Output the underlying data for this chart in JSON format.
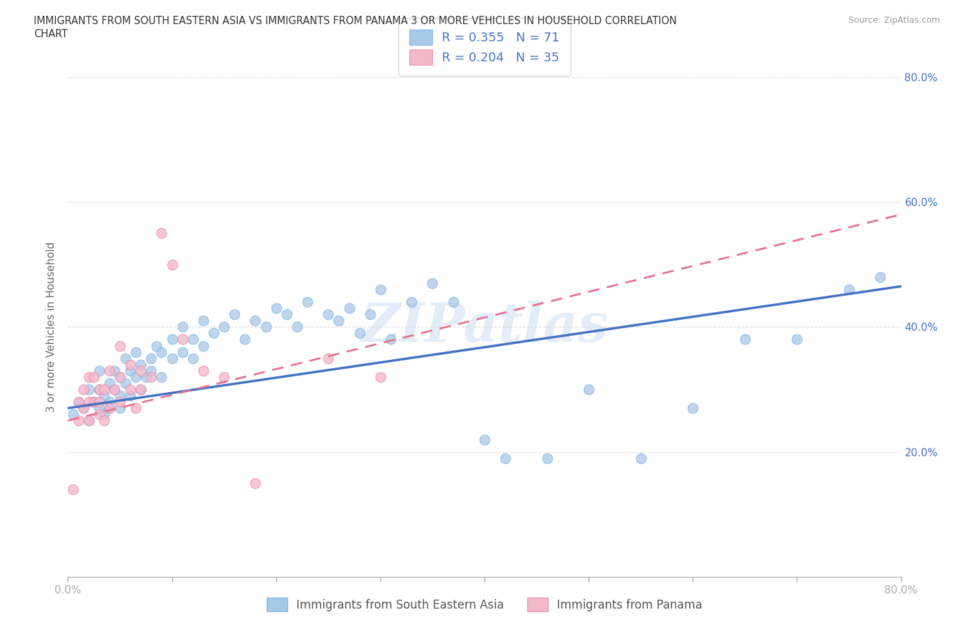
{
  "title": "IMMIGRANTS FROM SOUTH EASTERN ASIA VS IMMIGRANTS FROM PANAMA 3 OR MORE VEHICLES IN HOUSEHOLD CORRELATION\nCHART",
  "source": "Source: ZipAtlas.com",
  "ylabel": "3 or more Vehicles in Household",
  "xlim": [
    0,
    0.8
  ],
  "ylim": [
    0,
    0.8
  ],
  "blue_color": "#a8c8e8",
  "blue_edge_color": "#7ab3e0",
  "pink_color": "#f4b8cb",
  "pink_edge_color": "#e88ca8",
  "blue_line_color": "#4472c4",
  "pink_line_color": "#e87090",
  "pink_dash_color": "#f4b8cb",
  "legend_R1": "R = 0.355",
  "legend_N1": "N = 71",
  "legend_R2": "R = 0.204",
  "legend_N2": "N = 35",
  "series1_label": "Immigrants from South Eastern Asia",
  "series2_label": "Immigrants from Panama",
  "watermark": "ZIPatlas",
  "blue_scatter_x": [
    0.005,
    0.01,
    0.015,
    0.02,
    0.02,
    0.025,
    0.03,
    0.03,
    0.03,
    0.035,
    0.035,
    0.04,
    0.04,
    0.04,
    0.045,
    0.045,
    0.05,
    0.05,
    0.05,
    0.055,
    0.055,
    0.06,
    0.06,
    0.065,
    0.065,
    0.07,
    0.07,
    0.075,
    0.08,
    0.08,
    0.085,
    0.09,
    0.09,
    0.1,
    0.1,
    0.11,
    0.11,
    0.12,
    0.12,
    0.13,
    0.13,
    0.14,
    0.15,
    0.16,
    0.17,
    0.18,
    0.19,
    0.2,
    0.21,
    0.22,
    0.23,
    0.25,
    0.26,
    0.27,
    0.28,
    0.29,
    0.3,
    0.31,
    0.33,
    0.35,
    0.37,
    0.4,
    0.42,
    0.46,
    0.5,
    0.55,
    0.6,
    0.65,
    0.7,
    0.75,
    0.78
  ],
  "blue_scatter_y": [
    0.26,
    0.28,
    0.27,
    0.25,
    0.3,
    0.28,
    0.27,
    0.3,
    0.33,
    0.26,
    0.29,
    0.27,
    0.31,
    0.28,
    0.3,
    0.33,
    0.29,
    0.32,
    0.27,
    0.31,
    0.35,
    0.29,
    0.33,
    0.32,
    0.36,
    0.3,
    0.34,
    0.32,
    0.35,
    0.33,
    0.37,
    0.32,
    0.36,
    0.35,
    0.38,
    0.36,
    0.4,
    0.38,
    0.35,
    0.37,
    0.41,
    0.39,
    0.4,
    0.42,
    0.38,
    0.41,
    0.4,
    0.43,
    0.42,
    0.4,
    0.44,
    0.42,
    0.41,
    0.43,
    0.39,
    0.42,
    0.46,
    0.38,
    0.44,
    0.47,
    0.44,
    0.22,
    0.19,
    0.19,
    0.3,
    0.19,
    0.27,
    0.38,
    0.38,
    0.46,
    0.48
  ],
  "pink_scatter_x": [
    0.005,
    0.01,
    0.01,
    0.015,
    0.015,
    0.02,
    0.02,
    0.02,
    0.025,
    0.025,
    0.03,
    0.03,
    0.03,
    0.035,
    0.035,
    0.04,
    0.04,
    0.045,
    0.05,
    0.05,
    0.05,
    0.06,
    0.06,
    0.065,
    0.07,
    0.07,
    0.08,
    0.09,
    0.1,
    0.11,
    0.13,
    0.15,
    0.18,
    0.25,
    0.3
  ],
  "pink_scatter_y": [
    0.14,
    0.25,
    0.28,
    0.27,
    0.3,
    0.25,
    0.28,
    0.32,
    0.28,
    0.32,
    0.26,
    0.28,
    0.3,
    0.25,
    0.3,
    0.27,
    0.33,
    0.3,
    0.28,
    0.32,
    0.37,
    0.3,
    0.34,
    0.27,
    0.3,
    0.33,
    0.32,
    0.55,
    0.5,
    0.38,
    0.33,
    0.32,
    0.15,
    0.35,
    0.32
  ],
  "blue_trend_x": [
    0.0,
    0.8
  ],
  "blue_trend_y": [
    0.27,
    0.465
  ],
  "pink_trend_x": [
    0.0,
    0.8
  ],
  "pink_trend_y": [
    0.25,
    0.58
  ],
  "grid_color": "#dddddd",
  "bg_color": "#ffffff",
  "tick_color": "#aaaaaa",
  "label_color": "#4472c4"
}
